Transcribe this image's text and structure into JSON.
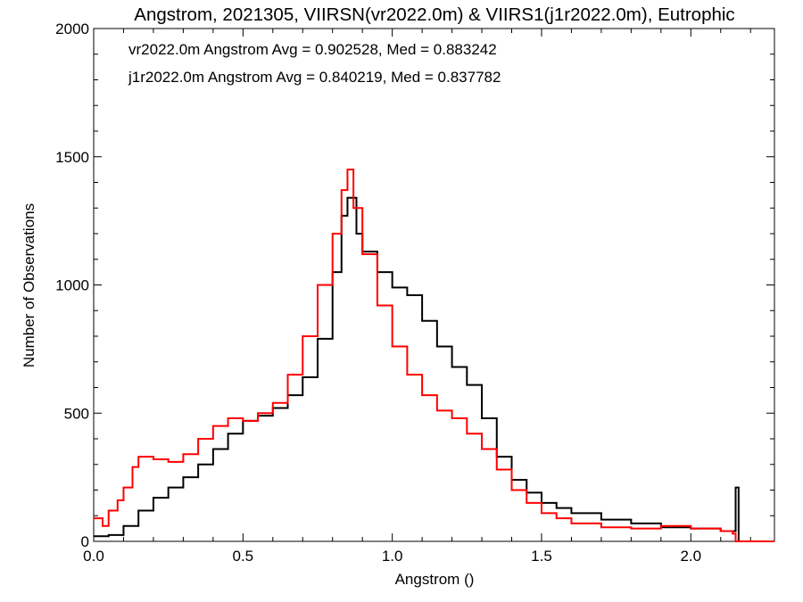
{
  "chart_data": {
    "type": "line",
    "title": "Angstrom, 2021305, VIIRSN(vr2022.0m) & VIIRS1(j1r2022.0m), Eutrophic",
    "xlabel": "Angstrom ()",
    "ylabel": "Number of Observations",
    "xlim": [
      0.0,
      2.28
    ],
    "ylim": [
      0,
      2000
    ],
    "xticks": [
      0.0,
      0.5,
      1.0,
      1.5,
      2.0
    ],
    "xtick_labels": [
      "0.0",
      "0.5",
      "1.0",
      "1.5",
      "2.0"
    ],
    "yticks": [
      0,
      500,
      1000,
      1500,
      2000
    ],
    "ytick_labels": [
      "0",
      "500",
      "1000",
      "1500",
      "2000"
    ],
    "grid": false,
    "legend_position": "top-left",
    "annotations": [
      {
        "text": "vr2022.0m Angstrom Avg = 0.902528, Med = 0.883242",
        "color": "#000000"
      },
      {
        "text": "j1r2022.0m Angstrom Avg = 0.840219, Med = 0.837782",
        "color": "#ff0000"
      }
    ],
    "series": [
      {
        "color": "#000000",
        "x": [
          0.0,
          0.05,
          0.1,
          0.15,
          0.2,
          0.25,
          0.3,
          0.35,
          0.4,
          0.45,
          0.5,
          0.55,
          0.6,
          0.65,
          0.7,
          0.75,
          0.8,
          0.83,
          0.85,
          0.88,
          0.9,
          0.95,
          1.0,
          1.05,
          1.1,
          1.15,
          1.2,
          1.25,
          1.3,
          1.35,
          1.4,
          1.45,
          1.5,
          1.55,
          1.6,
          1.7,
          1.8,
          1.9,
          2.0,
          2.1,
          2.14,
          2.15,
          2.16,
          2.2,
          2.28
        ],
        "y": [
          20,
          25,
          60,
          120,
          170,
          210,
          250,
          300,
          360,
          420,
          470,
          490,
          520,
          570,
          640,
          790,
          1050,
          1270,
          1340,
          1200,
          1130,
          1050,
          990,
          960,
          860,
          760,
          680,
          610,
          480,
          330,
          240,
          190,
          150,
          130,
          110,
          85,
          70,
          55,
          50,
          40,
          40,
          210,
          0,
          0,
          0
        ]
      },
      {
        "color": "#ff0000",
        "x": [
          0.0,
          0.03,
          0.05,
          0.08,
          0.1,
          0.13,
          0.15,
          0.2,
          0.25,
          0.3,
          0.35,
          0.4,
          0.45,
          0.5,
          0.55,
          0.6,
          0.65,
          0.7,
          0.75,
          0.8,
          0.83,
          0.85,
          0.87,
          0.9,
          0.95,
          1.0,
          1.05,
          1.1,
          1.15,
          1.2,
          1.25,
          1.3,
          1.35,
          1.4,
          1.45,
          1.5,
          1.55,
          1.6,
          1.7,
          1.8,
          1.9,
          2.0,
          2.1,
          2.14,
          2.15,
          2.16,
          2.2,
          2.28
        ],
        "y": [
          90,
          60,
          120,
          160,
          210,
          290,
          330,
          320,
          310,
          340,
          400,
          450,
          480,
          470,
          500,
          540,
          650,
          800,
          1000,
          1200,
          1370,
          1450,
          1300,
          1120,
          920,
          760,
          650,
          570,
          510,
          480,
          420,
          360,
          280,
          200,
          150,
          110,
          90,
          70,
          55,
          50,
          60,
          50,
          40,
          30,
          0,
          0,
          0,
          0
        ]
      }
    ]
  }
}
